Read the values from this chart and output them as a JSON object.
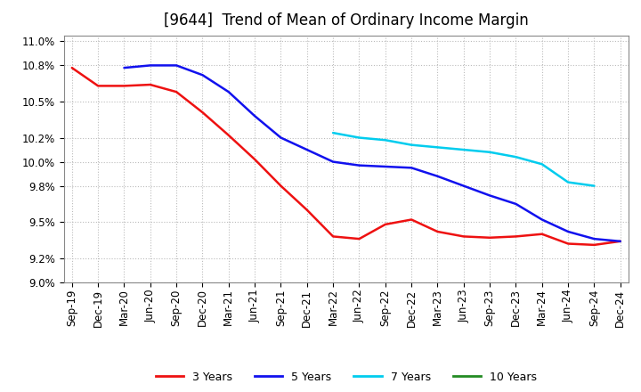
{
  "title": "[9644]  Trend of Mean of Ordinary Income Margin",
  "x_labels": [
    "Sep-19",
    "Dec-19",
    "Mar-20",
    "Jun-20",
    "Sep-20",
    "Dec-20",
    "Mar-21",
    "Jun-21",
    "Sep-21",
    "Dec-21",
    "Mar-22",
    "Jun-22",
    "Sep-22",
    "Dec-22",
    "Mar-23",
    "Jun-23",
    "Sep-23",
    "Dec-23",
    "Mar-24",
    "Jun-24",
    "Sep-24",
    "Dec-24"
  ],
  "ylim": [
    9.0,
    11.05
  ],
  "yticks": [
    9.0,
    9.2,
    9.5,
    9.8,
    10.0,
    10.2,
    10.5,
    10.8,
    11.0
  ],
  "series": {
    "3 Years": {
      "color": "#EE1111",
      "data_x": [
        0,
        1,
        2,
        3,
        4,
        5,
        6,
        7,
        8,
        9,
        10,
        11,
        12,
        13,
        14,
        15,
        16,
        17,
        18,
        19,
        20,
        21
      ],
      "data_y": [
        10.78,
        10.63,
        10.63,
        10.64,
        10.58,
        10.41,
        10.22,
        10.02,
        9.8,
        9.6,
        9.38,
        9.36,
        9.48,
        9.52,
        9.42,
        9.38,
        9.37,
        9.38,
        9.4,
        9.32,
        9.31,
        9.34
      ]
    },
    "5 Years": {
      "color": "#1111EE",
      "data_x": [
        1,
        2,
        3,
        4,
        5,
        6,
        7,
        8,
        9,
        10,
        11,
        12,
        13,
        14,
        15,
        16,
        17,
        18,
        19,
        20,
        21
      ],
      "data_y": [
        null,
        10.78,
        10.8,
        10.8,
        10.72,
        10.58,
        10.38,
        10.2,
        10.1,
        10.0,
        9.97,
        9.96,
        9.95,
        9.88,
        9.8,
        9.72,
        9.65,
        9.52,
        9.42,
        9.36,
        9.34
      ]
    },
    "7 Years": {
      "color": "#00CCEE",
      "data_x": [
        10,
        11,
        12,
        13,
        14,
        15,
        16,
        17,
        18,
        19,
        20
      ],
      "data_y": [
        10.24,
        10.2,
        10.18,
        10.14,
        10.12,
        10.1,
        10.08,
        10.04,
        9.98,
        9.83,
        9.8
      ]
    },
    "10 Years": {
      "color": "#228B22",
      "data_x": [],
      "data_y": []
    }
  },
  "legend_labels": [
    "3 Years",
    "5 Years",
    "7 Years",
    "10 Years"
  ],
  "legend_colors": [
    "#EE1111",
    "#1111EE",
    "#00CCEE",
    "#228B22"
  ],
  "background_color": "#FFFFFF",
  "grid_color": "#BBBBBB",
  "title_fontsize": 12,
  "axis_fontsize": 8.5
}
